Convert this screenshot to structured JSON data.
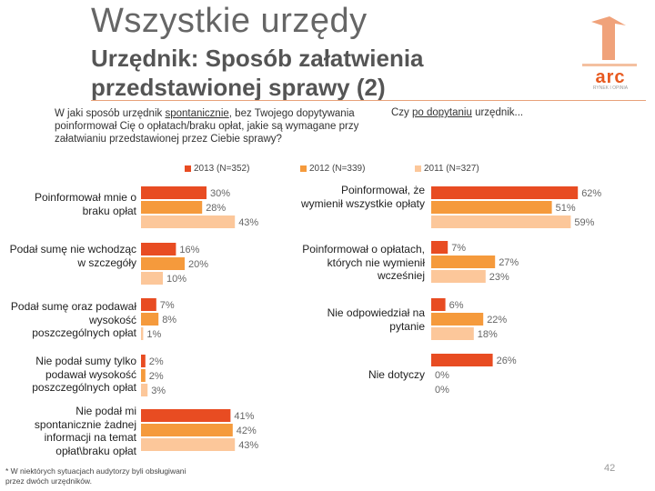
{
  "header": {
    "title": "Wszystkie urzędy",
    "subtitle": "Urzędnik: Sposób załatwienia przedstawionej sprawy (2)",
    "logo_text": "arc",
    "logo_sub": "RYNEK I OPINIA"
  },
  "questions": {
    "left_pre": "W jaki sposób urzędnik ",
    "left_underlined": "spontanicznie",
    "left_post": ", bez Twojego dopytywania poinformował Cię o opłatach/braku opłat, jakie są wymagane przy załatwianiu przedstawionej przez Ciebie sprawy?",
    "right_pre": "Czy ",
    "right_underlined": "po dopytaniu",
    "right_post": " urzędnik..."
  },
  "footnote": "* W niektórych sytuacjach audytorzy byli obsługiwani przez dwóch urzędników.",
  "page_number": "42",
  "colors": {
    "2013": "#e84c22",
    "2012": "#f59a3c",
    "2011": "#fcc79a"
  },
  "chart_data": {
    "type": "bar",
    "orientation": "horizontal",
    "series_names": [
      "2013 (N=352)",
      "2012 (N=339)",
      "2011 (N=327)"
    ],
    "left": {
      "categories": [
        "Poinformował mnie o braku opłat",
        "Podał sumę nie wchodząc w szczegóły",
        "Podał sumę oraz podawał wysokość poszczególnych opłat",
        "Nie podał sumy tylko podawał wysokość poszczególnych opłat",
        "Nie podał mi spontanicznie żadnej informacji na temat opłat\\braku opłat"
      ],
      "series": [
        {
          "name": "2013 (N=352)",
          "values": [
            30,
            16,
            7,
            2,
            41
          ]
        },
        {
          "name": "2012 (N=339)",
          "values": [
            28,
            20,
            8,
            2,
            42
          ]
        },
        {
          "name": "2011 (N=327)",
          "values": [
            43,
            10,
            1,
            3,
            43
          ]
        }
      ]
    },
    "right": {
      "categories": [
        "Poinformował, że wymienił wszystkie opłaty",
        "Poinformował o opłatach, których nie wymienił wcześniej",
        "Nie odpowiedział na pytanie",
        "Nie dotyczy"
      ],
      "series": [
        {
          "name": "2013 (N=352)",
          "values": [
            62,
            7,
            6,
            26
          ]
        },
        {
          "name": "2012 (N=339)",
          "values": [
            51,
            27,
            22,
            0
          ]
        },
        {
          "name": "2011 (N=327)",
          "values": [
            59,
            23,
            18,
            0
          ]
        }
      ]
    }
  }
}
